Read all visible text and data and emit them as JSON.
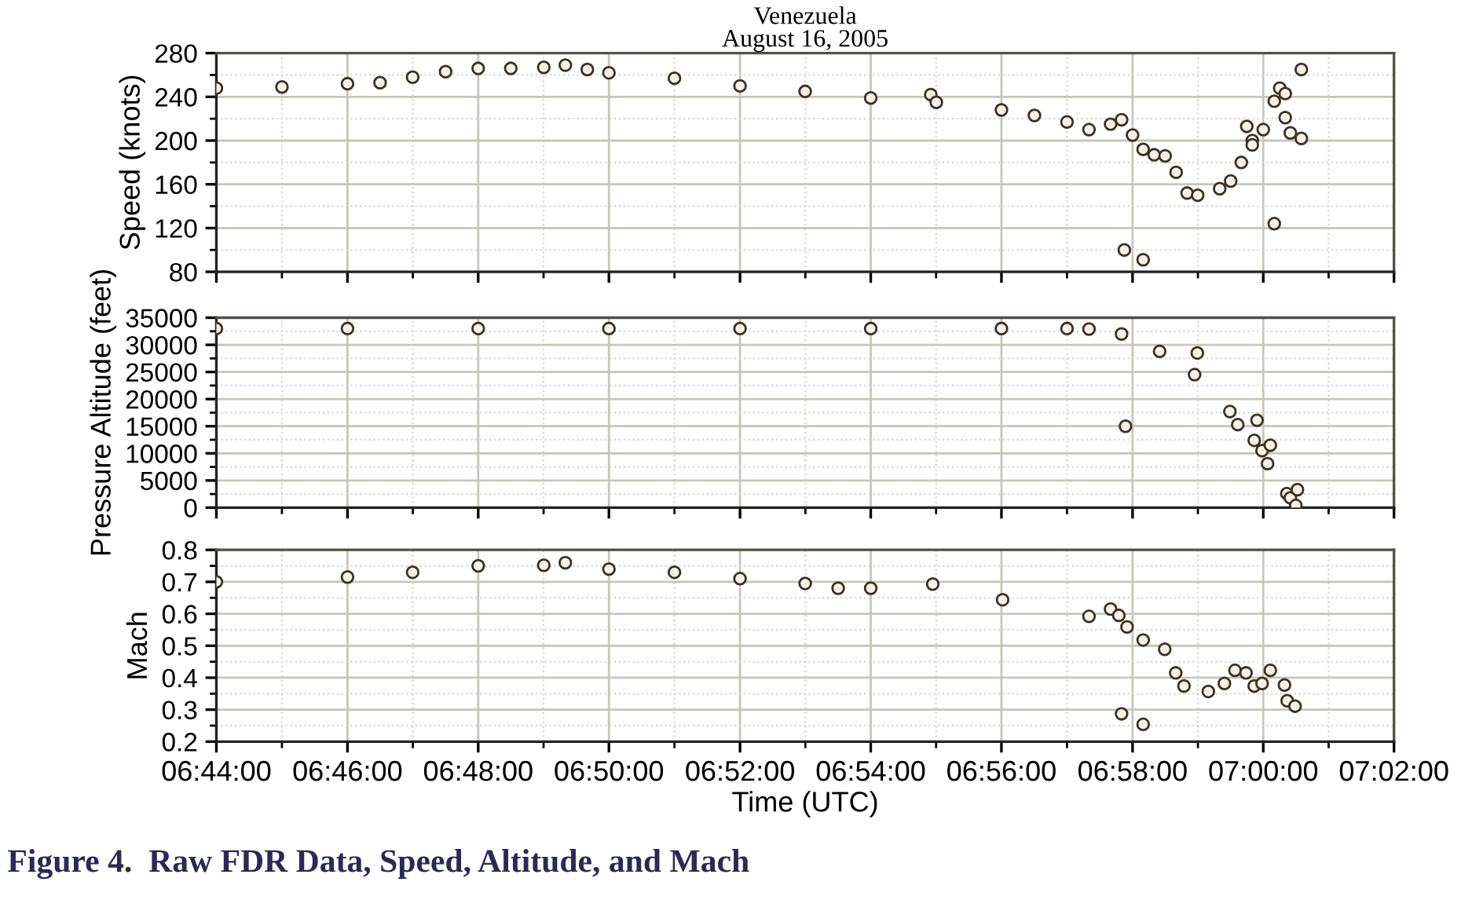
{
  "chart_data": [
    {
      "type": "scatter",
      "title": "Venezuela",
      "subtitle": "August 16, 2005",
      "ylabel": "Speed (knots)",
      "marker": "circle",
      "grid": true,
      "tick_labels": "y",
      "xlim": [
        6.7333,
        7.0333
      ],
      "xticks": [
        {
          "value": 6.7333,
          "label": null
        },
        {
          "value": 6.7667,
          "label": null
        },
        {
          "value": 6.8,
          "label": null
        },
        {
          "value": 6.8333,
          "label": null
        },
        {
          "value": 6.8667,
          "label": null
        },
        {
          "value": 6.9,
          "label": null
        },
        {
          "value": 6.9333,
          "label": null
        },
        {
          "value": 6.9667,
          "label": null
        },
        {
          "value": 7.0,
          "label": null
        },
        {
          "value": 7.0333,
          "label": null
        }
      ],
      "ylim": [
        80,
        280
      ],
      "yticks": [
        80,
        120,
        160,
        200,
        240,
        280
      ],
      "series": [
        {
          "color": "#3a3222",
          "x": [
            6.7333,
            6.75,
            6.7667,
            6.775,
            6.7833,
            6.7917,
            6.8,
            6.8083,
            6.8167,
            6.8222,
            6.8278,
            6.8333,
            6.85,
            6.8667,
            6.8833,
            6.9,
            6.9153,
            6.9167,
            6.9333,
            6.9417,
            6.95,
            6.9556,
            6.9611,
            6.9639,
            6.9646,
            6.9667,
            6.9694,
            6.9694,
            6.9722,
            6.975,
            6.9778,
            6.9806,
            6.9833,
            6.9889,
            6.9917,
            6.9944,
            6.9958,
            6.9972,
            6.9972,
            7.0,
            7.0028,
            7.0028,
            7.0042,
            7.0056,
            7.0056,
            7.0069,
            7.0097,
            7.0097
          ],
          "values": [
            248,
            249,
            252,
            253,
            258,
            263,
            266,
            266,
            267,
            269,
            265,
            262,
            257,
            250,
            245,
            239,
            242,
            235,
            228,
            223,
            217,
            210,
            215,
            219,
            100,
            205,
            192,
            91,
            187,
            186,
            171,
            152,
            150,
            156,
            163,
            180,
            213,
            200,
            196,
            210,
            236,
            124,
            248,
            243,
            221,
            207,
            202,
            265
          ]
        }
      ]
    },
    {
      "type": "scatter",
      "ylabel": "Pressure Altitude (feet)",
      "marker": "circle",
      "grid": true,
      "tick_labels": "y",
      "xlim": [
        6.7333,
        7.0333
      ],
      "xticks": [
        {
          "value": 6.7333,
          "label": null
        },
        {
          "value": 6.7667,
          "label": null
        },
        {
          "value": 6.8,
          "label": null
        },
        {
          "value": 6.8333,
          "label": null
        },
        {
          "value": 6.8667,
          "label": null
        },
        {
          "value": 6.9,
          "label": null
        },
        {
          "value": 6.9333,
          "label": null
        },
        {
          "value": 6.9667,
          "label": null
        },
        {
          "value": 7.0,
          "label": null
        },
        {
          "value": 7.0333,
          "label": null
        }
      ],
      "ylim": [
        0,
        35000
      ],
      "yticks": [
        0,
        5000,
        10000,
        15000,
        20000,
        25000,
        30000,
        35000
      ],
      "series": [
        {
          "color": "#3a3222",
          "x": [
            6.7333,
            6.7667,
            6.8,
            6.8333,
            6.8667,
            6.9,
            6.9333,
            6.95,
            6.9556,
            6.9639,
            6.9649,
            6.9736,
            6.9825,
            6.9832,
            6.9915,
            6.9935,
            6.9977,
            6.9984,
            6.9997,
            7.0011,
            7.0018,
            7.006,
            7.0069,
            7.0083,
            7.0087
          ],
          "values": [
            33000,
            33000,
            33000,
            33000,
            33000,
            33000,
            33000,
            33000,
            32900,
            32000,
            15000,
            28800,
            24500,
            28500,
            17700,
            15300,
            12400,
            16100,
            10500,
            8100,
            11500,
            2600,
            1800,
            400,
            3300
          ]
        }
      ]
    },
    {
      "type": "scatter",
      "ylabel": "Mach",
      "xlabel": "Time (UTC)",
      "marker": "circle",
      "grid": true,
      "annotations": [
        "Figure 4.  Raw FDR Data, Speed, Altitude, and Mach"
      ],
      "xlim": [
        6.7333,
        7.0333
      ],
      "xticks": [
        {
          "value": 6.7333,
          "label": "06:44:00"
        },
        {
          "value": 6.7667,
          "label": "06:46:00"
        },
        {
          "value": 6.8,
          "label": "06:48:00"
        },
        {
          "value": 6.8333,
          "label": "06:50:00"
        },
        {
          "value": 6.8667,
          "label": "06:52:00"
        },
        {
          "value": 6.9,
          "label": "06:54:00"
        },
        {
          "value": 6.9333,
          "label": "06:56:00"
        },
        {
          "value": 6.9667,
          "label": "06:58:00"
        },
        {
          "value": 7.0,
          "label": "07:00:00"
        },
        {
          "value": 7.0333,
          "label": "07:02:00"
        }
      ],
      "ylim": [
        0.2,
        0.8
      ],
      "yticks": [
        0.2,
        0.3,
        0.4,
        0.5,
        0.6,
        0.7,
        0.8
      ],
      "series": [
        {
          "color": "#3a3222",
          "x": [
            6.7333,
            6.7667,
            6.7833,
            6.8,
            6.8167,
            6.8222,
            6.8333,
            6.85,
            6.8667,
            6.8833,
            6.8917,
            6.9,
            6.9158,
            6.9336,
            6.9556,
            6.9611,
            6.9632,
            6.9639,
            6.9653,
            6.9694,
            6.9694,
            6.9749,
            6.9777,
            6.9798,
            6.986,
            6.9901,
            6.9928,
            6.9956,
            6.9977,
            6.9997,
            7.0018,
            7.0054,
            7.0061,
            7.0081
          ],
          "values": [
            0.7,
            0.715,
            0.73,
            0.75,
            0.752,
            0.76,
            0.74,
            0.73,
            0.71,
            0.695,
            0.68,
            0.68,
            0.693,
            0.644,
            0.592,
            0.615,
            0.595,
            0.287,
            0.559,
            0.518,
            0.254,
            0.489,
            0.415,
            0.374,
            0.357,
            0.382,
            0.423,
            0.415,
            0.374,
            0.382,
            0.423,
            0.377,
            0.328,
            0.311
          ]
        }
      ]
    }
  ]
}
